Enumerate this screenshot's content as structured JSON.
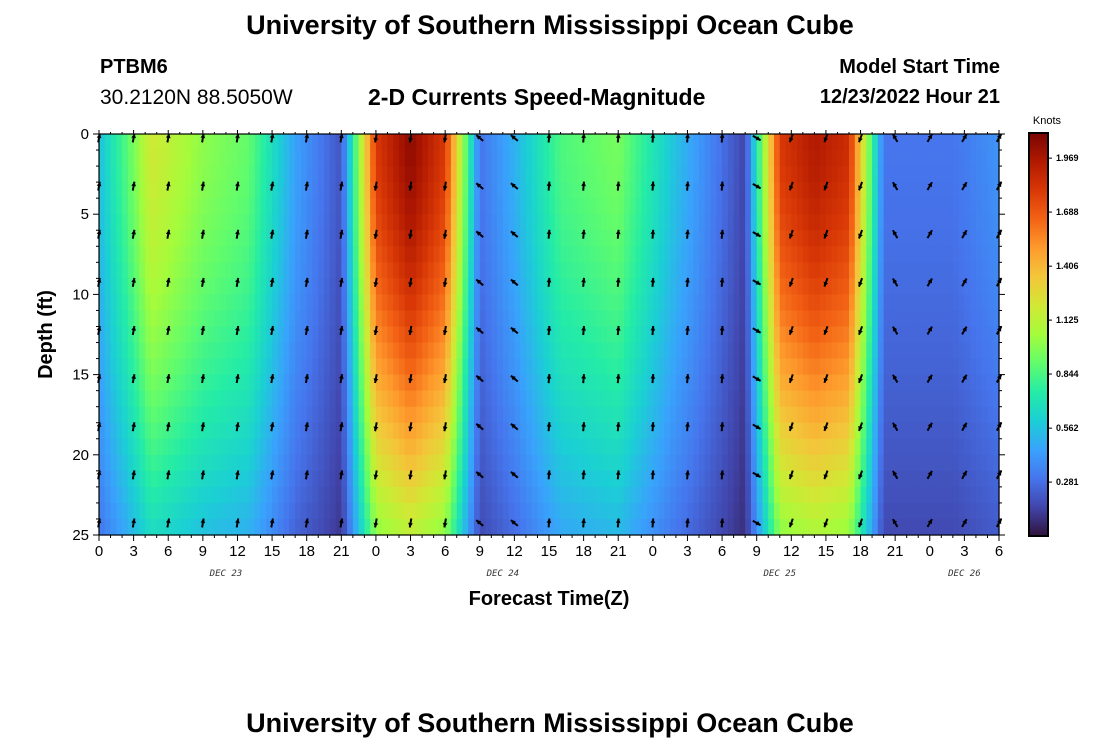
{
  "header": {
    "title": "University of Southern Mississippi Ocean Cube",
    "station": "PTBM6",
    "coords": "30.2120N  88.5050W",
    "subtitle": "2-D Currents Speed-Magnitude",
    "model_start_label": "Model Start Time",
    "model_start_value": "12/23/2022 Hour 21"
  },
  "footer": {
    "title": "University of Southern Mississippi Ocean Cube"
  },
  "chart_data": {
    "type": "heatmap",
    "title": "2-D Currents Speed-Magnitude",
    "xlabel": "Forecast Time(Z)",
    "ylabel": "Depth (ft)",
    "x_range_hours": [
      0,
      78
    ],
    "ylim": [
      0,
      25
    ],
    "y_ticks": [
      0,
      5,
      10,
      15,
      20,
      25
    ],
    "x_tick_labels": [
      "0",
      "3",
      "6",
      "9",
      "12",
      "15",
      "18",
      "21",
      "0",
      "3",
      "6",
      "9",
      "12",
      "15",
      "18",
      "21",
      "0",
      "3",
      "6",
      "9",
      "12",
      "15",
      "18",
      "21",
      "0",
      "3",
      "6"
    ],
    "day_labels": [
      {
        "text": "DEC 23",
        "hour": 11
      },
      {
        "text": "DEC 24",
        "hour": 35
      },
      {
        "text": "DEC 25",
        "hour": 59
      },
      {
        "text": "DEC 26",
        "hour": 75
      }
    ],
    "colorbar": {
      "title": "Knots",
      "min": 0,
      "max": 2.1,
      "ticks": [
        "1.969",
        "1.688",
        "1.406",
        "1.125",
        "0.844",
        "0.562",
        "0.281"
      ],
      "colors": [
        "#30123b",
        "#4145ab",
        "#4675ed",
        "#39a2fc",
        "#1bcfd4",
        "#24eca6",
        "#61fc6c",
        "#a4fc3b",
        "#d1e834",
        "#f3c63a",
        "#fe9b2d",
        "#f36315",
        "#d93806",
        "#b11901",
        "#7a0402"
      ]
    },
    "speed_profile_surface": [
      {
        "hour": 0,
        "speed": 0.55
      },
      {
        "hour": 3,
        "speed": 0.95
      },
      {
        "hour": 4.5,
        "speed": 1.2
      },
      {
        "hour": 9,
        "speed": 1.0
      },
      {
        "hour": 13,
        "speed": 0.9
      },
      {
        "hour": 17,
        "speed": 0.45
      },
      {
        "hour": 21,
        "speed": 0.2
      },
      {
        "hour": 24,
        "speed": 1.8
      },
      {
        "hour": 27,
        "speed": 2.05
      },
      {
        "hour": 30,
        "speed": 1.8
      },
      {
        "hour": 33,
        "speed": 0.3
      },
      {
        "hour": 36,
        "speed": 0.5
      },
      {
        "hour": 40,
        "speed": 0.85
      },
      {
        "hour": 45,
        "speed": 0.95
      },
      {
        "hour": 50,
        "speed": 0.55
      },
      {
        "hour": 56,
        "speed": 0.15
      },
      {
        "hour": 59,
        "speed": 1.8
      },
      {
        "hour": 62,
        "speed": 1.95
      },
      {
        "hour": 65,
        "speed": 1.85
      },
      {
        "hour": 68,
        "speed": 0.3
      },
      {
        "hour": 74,
        "speed": 0.3
      },
      {
        "hour": 78,
        "speed": 0.4
      }
    ]
  }
}
